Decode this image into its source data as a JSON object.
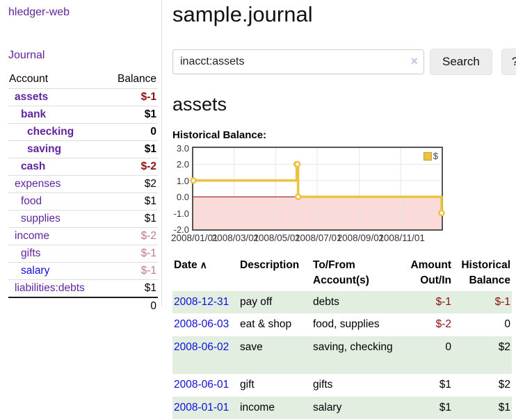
{
  "app": {
    "title": "hledger-web",
    "nav_journal": "Journal"
  },
  "colors": {
    "link_purple": "#61249f",
    "link_blue": "#0e0edd",
    "negative_strong": "#8b0f0f",
    "negative_soft": "#bf7b84",
    "row_green": "#e2efe0",
    "series_gold": "#EDC240"
  },
  "sidebar": {
    "columns": {
      "account": "Account",
      "balance": "Balance"
    },
    "rows": [
      {
        "account": "assets",
        "balance": "$-1",
        "indent": 1,
        "account_style": "purple bold",
        "balance_style": "neg-bold"
      },
      {
        "account": "bank",
        "balance": "$1",
        "indent": 2,
        "account_style": "purple bold",
        "balance_style": "bold"
      },
      {
        "account": "checking",
        "balance": "0",
        "indent": 3,
        "account_style": "purple bold",
        "balance_style": "bold"
      },
      {
        "account": "saving",
        "balance": "$1",
        "indent": 3,
        "account_style": "purple bold",
        "balance_style": "bold"
      },
      {
        "account": "cash",
        "balance": "$-2",
        "indent": 2,
        "account_style": "purple bold",
        "balance_style": "neg-bold"
      },
      {
        "account": "expenses",
        "balance": "$2",
        "indent": 1,
        "account_style": "purple",
        "balance_style": "plain"
      },
      {
        "account": "food",
        "balance": "$1",
        "indent": 2,
        "account_style": "purple",
        "balance_style": "plain"
      },
      {
        "account": "supplies",
        "balance": "$1",
        "indent": 2,
        "account_style": "purple",
        "balance_style": "plain"
      },
      {
        "account": "income",
        "balance": "$-2",
        "indent": 1,
        "account_style": "purple",
        "balance_style": "neg-soft"
      },
      {
        "account": "gifts",
        "balance": "$-1",
        "indent": 2,
        "account_style": "purple",
        "balance_style": "neg-soft"
      },
      {
        "account": "salary",
        "balance": "$-1",
        "indent": 2,
        "account_style": "blue",
        "balance_style": "neg-soft"
      },
      {
        "account": "liabilities:debts",
        "balance": "$1",
        "indent": 1,
        "account_style": "purple",
        "balance_style": "plain"
      }
    ],
    "total": "0"
  },
  "header": {
    "title": "sample.journal"
  },
  "search": {
    "value": "inacct:assets",
    "clear_icon": "×",
    "button_label": "Search",
    "help_label": "?"
  },
  "account_page": {
    "heading": "assets",
    "chart_title": "Historical Balance:"
  },
  "chart_data": {
    "type": "line",
    "steps": true,
    "title": "Historical Balance:",
    "legend": [
      {
        "label": "$",
        "color": "#EDC240"
      }
    ],
    "legend_position": "top-right",
    "grid": true,
    "x_start": "2008-01-01",
    "x_end": "2008-12-31",
    "ylim": [
      -2,
      3
    ],
    "y_ticks": [
      {
        "label": "3.0",
        "value": 3
      },
      {
        "label": "2.0",
        "value": 2
      },
      {
        "label": "1.0",
        "value": 1
      },
      {
        "label": "0.0",
        "value": 0
      },
      {
        "label": "-1.0",
        "value": -1
      },
      {
        "label": "-2.0",
        "value": -2
      }
    ],
    "x_ticks": [
      {
        "label": "2008/01/01",
        "date": "2008-01-01"
      },
      {
        "label": "2008/03/01",
        "date": "2008-03-01"
      },
      {
        "label": "2008/05/01",
        "date": "2008-05-01"
      },
      {
        "label": "2008/07/01",
        "date": "2008-07-01"
      },
      {
        "label": "2008/09/01",
        "date": "2008-09-01"
      },
      {
        "label": "2008/11/01",
        "date": "2008-11-01"
      }
    ],
    "y_grid_values": [
      2,
      1,
      -1
    ],
    "x_grid_dates": [
      "2008-03-01",
      "2008-05-01",
      "2008-07-01",
      "2008-09-01",
      "2008-11-01"
    ],
    "zero_line_color": "#8b0000",
    "negative_fill": "#fbdada",
    "series": [
      {
        "name": "$",
        "color": "#EDC240",
        "data": [
          {
            "date": "2008-01-01",
            "value": 1
          },
          {
            "date": "2008-06-01",
            "value": 2
          },
          {
            "date": "2008-06-02",
            "value": 2
          },
          {
            "date": "2008-06-03",
            "value": 0
          },
          {
            "date": "2008-12-31",
            "value": -1
          }
        ]
      }
    ]
  },
  "register": {
    "columns": {
      "date": "Date",
      "sort_icon": "∧",
      "description": "Description",
      "accounts": "To/From Account(s)",
      "amount": "Amount Out/In",
      "balance": "Historical Balance"
    },
    "rows": [
      {
        "date": "2008-12-31",
        "description": "pay off",
        "accounts": "debts",
        "amount": "$-1",
        "balance": "$-1",
        "amount_neg": true,
        "balance_neg": true,
        "extra_space": false
      },
      {
        "date": "2008-06-03",
        "description": "eat & shop",
        "accounts": "food, supplies",
        "amount": "$-2",
        "balance": "0",
        "amount_neg": true,
        "balance_neg": false,
        "extra_space": false
      },
      {
        "date": "2008-06-02",
        "description": "save",
        "accounts": "saving, checking",
        "amount": "0",
        "balance": "$2",
        "amount_neg": false,
        "balance_neg": false,
        "extra_space": true
      },
      {
        "date": "2008-06-01",
        "description": "gift",
        "accounts": "gifts",
        "amount": "$1",
        "balance": "$2",
        "amount_neg": false,
        "balance_neg": false,
        "extra_space": false
      },
      {
        "date": "2008-01-01",
        "description": "income",
        "accounts": "salary",
        "amount": "$1",
        "balance": "$1",
        "amount_neg": false,
        "balance_neg": false,
        "extra_space": false
      }
    ]
  }
}
